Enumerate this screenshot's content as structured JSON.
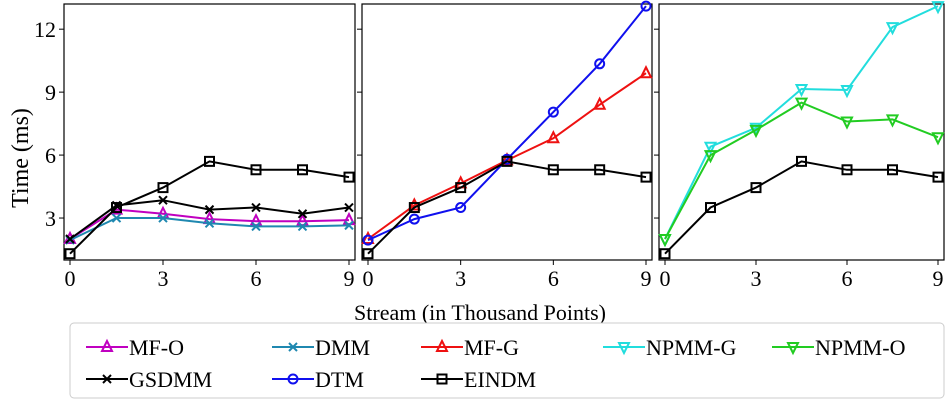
{
  "chart_data": [
    {
      "type": "line",
      "ylabel": "Time (ms)",
      "xlim": [
        0,
        9
      ],
      "ylim": [
        1,
        13.2
      ],
      "xticks": [
        0,
        3,
        6,
        9
      ],
      "yticks": [
        3,
        6,
        9,
        12
      ],
      "x": [
        0,
        1.5,
        3,
        4.5,
        6,
        7.5,
        9
      ],
      "series": [
        {
          "name": "MF-O",
          "color": "#c000c0",
          "marker": "triangle-up",
          "values": [
            2.0,
            3.4,
            3.2,
            2.95,
            2.85,
            2.85,
            2.9
          ]
        },
        {
          "name": "DMM",
          "color": "#1f88b0",
          "marker": "x",
          "values": [
            1.95,
            3.0,
            3.0,
            2.75,
            2.6,
            2.6,
            2.65
          ]
        },
        {
          "name": "GSDMM",
          "color": "#000000",
          "marker": "x",
          "values": [
            2.0,
            3.6,
            3.85,
            3.4,
            3.5,
            3.2,
            3.5
          ]
        },
        {
          "name": "EINDM",
          "color": "#000000",
          "marker": "square",
          "values": [
            1.3,
            3.5,
            4.45,
            5.7,
            5.3,
            5.3,
            4.95
          ]
        }
      ]
    },
    {
      "type": "line",
      "xlim": [
        0,
        9
      ],
      "ylim": [
        1,
        13.2
      ],
      "xticks": [
        0,
        3,
        6,
        9
      ],
      "yticks": [
        3,
        6,
        9,
        12
      ],
      "x": [
        0,
        1.5,
        3,
        4.5,
        6,
        7.5,
        9
      ],
      "series": [
        {
          "name": "MF-G",
          "color": "#ee1111",
          "marker": "triangle-up",
          "values": [
            2.0,
            3.6,
            4.65,
            5.75,
            6.8,
            8.4,
            9.9
          ]
        },
        {
          "name": "DTM",
          "color": "#1010ee",
          "marker": "circle",
          "values": [
            1.95,
            2.95,
            3.5,
            5.8,
            8.05,
            10.35,
            13.1
          ]
        },
        {
          "name": "EINDM",
          "color": "#000000",
          "marker": "square",
          "values": [
            1.3,
            3.5,
            4.45,
            5.7,
            5.3,
            5.3,
            4.95
          ]
        }
      ]
    },
    {
      "type": "line",
      "xlim": [
        0,
        9
      ],
      "ylim": [
        1,
        13.2
      ],
      "xticks": [
        0,
        3,
        6,
        9
      ],
      "yticks": [
        3,
        6,
        9,
        12
      ],
      "x": [
        0,
        1.5,
        3,
        4.5,
        6,
        7.5,
        9
      ],
      "series": [
        {
          "name": "NPMM-G",
          "color": "#22dddd",
          "marker": "triangle-down",
          "values": [
            2.0,
            6.4,
            7.3,
            9.15,
            9.1,
            12.1,
            13.1
          ]
        },
        {
          "name": "NPMM-O",
          "color": "#22cc22",
          "marker": "triangle-down",
          "values": [
            2.0,
            6.0,
            7.2,
            8.5,
            7.6,
            7.7,
            6.85
          ]
        },
        {
          "name": "EINDM",
          "color": "#000000",
          "marker": "square",
          "values": [
            1.3,
            3.5,
            4.45,
            5.7,
            5.3,
            5.3,
            4.95
          ]
        }
      ]
    }
  ],
  "xlabel": "Stream (in Thousand Points)",
  "legend": {
    "placement": "bottom",
    "items": [
      {
        "label": "MF-O",
        "color": "#c000c0",
        "marker": "triangle-up"
      },
      {
        "label": "DMM",
        "color": "#1f88b0",
        "marker": "x"
      },
      {
        "label": "MF-G",
        "color": "#ee1111",
        "marker": "triangle-up"
      },
      {
        "label": "NPMM-G",
        "color": "#22dddd",
        "marker": "triangle-down"
      },
      {
        "label": "NPMM-O",
        "color": "#22cc22",
        "marker": "triangle-down"
      },
      {
        "label": "GSDMM",
        "color": "#000000",
        "marker": "x"
      },
      {
        "label": "DTM",
        "color": "#1010ee",
        "marker": "circle"
      },
      {
        "label": "EINDM",
        "color": "#000000",
        "marker": "square"
      }
    ]
  }
}
